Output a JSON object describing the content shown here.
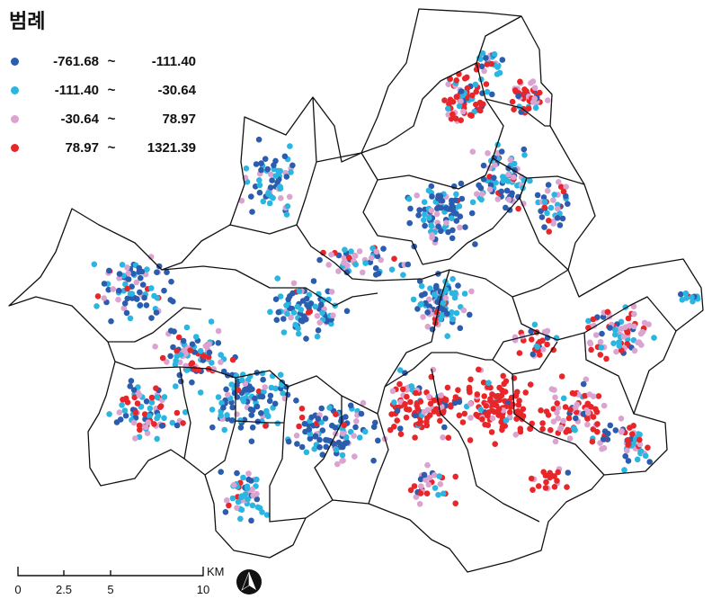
{
  "legend": {
    "title": "범례",
    "classes": [
      {
        "color": "#2b5cad",
        "lo": "-761.68",
        "sep": "~",
        "hi": "-111.40"
      },
      {
        "color": "#2ab6e0",
        "lo": "-111.40",
        "sep": "~",
        "hi": "-30.64"
      },
      {
        "color": "#dba3cf",
        "lo": "-30.64",
        "sep": "~",
        "hi": "78.97"
      },
      {
        "color": "#e8262a",
        "lo": "78.97",
        "sep": "~",
        "hi": "1321.39"
      }
    ]
  },
  "scale_bar": {
    "ticks": [
      "0",
      "2.5",
      "5",
      "10"
    ],
    "unit": "KM"
  },
  "north_arrow": {
    "icon": "north-arrow-icon"
  },
  "map": {
    "boundary_color": "#111111",
    "fill": "#ffffff"
  }
}
